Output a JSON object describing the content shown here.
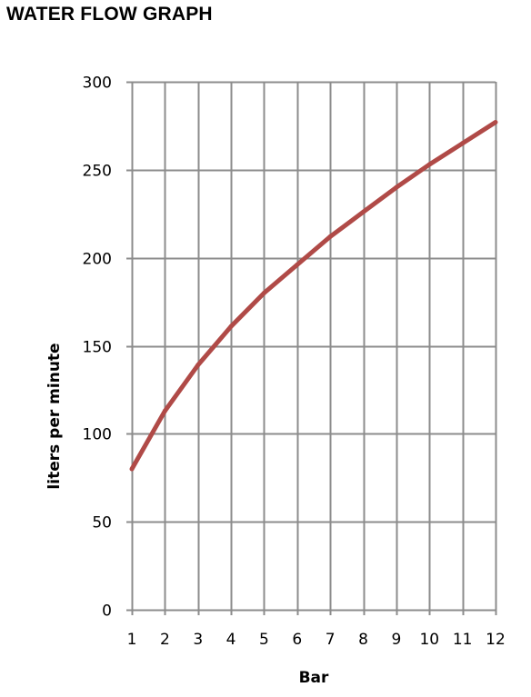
{
  "chart_data": {
    "type": "line",
    "title": "WATER FLOW GRAPH",
    "xlabel": "Bar",
    "ylabel": "liters per minute",
    "x": [
      1,
      2,
      3,
      4,
      5,
      6,
      7,
      8,
      9,
      10,
      11,
      12
    ],
    "xlim": [
      1,
      12
    ],
    "ylim": [
      0,
      300
    ],
    "y_ticks": [
      0,
      50,
      100,
      150,
      200,
      250,
      300
    ],
    "grid": true,
    "legend": "none",
    "series": [
      {
        "values": [
          80,
          113,
          139,
          161,
          180,
          196,
          212,
          226,
          240,
          253,
          265,
          277
        ],
        "color": "#b04a47"
      }
    ]
  },
  "colors": {
    "grid": "#8c8c8c",
    "line": "#b04a47"
  }
}
